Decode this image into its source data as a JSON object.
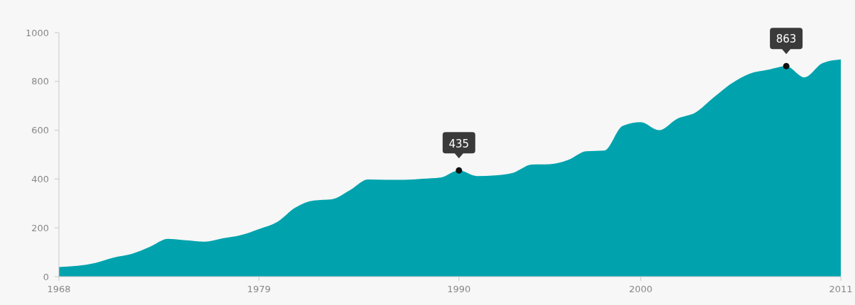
{
  "chart_data": {
    "type": "area",
    "x": [
      1968,
      1969,
      1970,
      1971,
      1972,
      1973,
      1974,
      1975,
      1976,
      1977,
      1978,
      1979,
      1980,
      1981,
      1982,
      1983,
      1984,
      1985,
      1986,
      1987,
      1988,
      1989,
      1990,
      1991,
      1992,
      1993,
      1994,
      1995,
      1996,
      1997,
      1998,
      1999,
      2000,
      2001,
      2002,
      2003,
      2004,
      2005,
      2006,
      2007,
      2008,
      2009,
      2010,
      2011
    ],
    "series": [
      {
        "color": "#00a3ad",
        "values": [
          39,
          44,
          56,
          78,
          93,
          122,
          155,
          149,
          143,
          157,
          170,
          195,
          224,
          283,
          312,
          317,
          354,
          398,
          397,
          397,
          401,
          406,
          435,
          412,
          415,
          426,
          459,
          461,
          478,
          514,
          517,
          618,
          633,
          600,
          647,
          672,
          734,
          792,
          832,
          848,
          863,
          817,
          875,
          890
        ]
      }
    ],
    "xlim": [
      1968,
      2011
    ],
    "xticks": [
      1968,
      1979,
      1990,
      2000,
      2011
    ],
    "ylim": [
      0,
      1000
    ],
    "yticks": [
      0,
      200,
      400,
      600,
      800,
      1000
    ],
    "annotations": [
      {
        "text": "435",
        "x": 1990,
        "y": 435
      },
      {
        "text": "863",
        "x": 2008,
        "y": 863
      }
    ]
  }
}
